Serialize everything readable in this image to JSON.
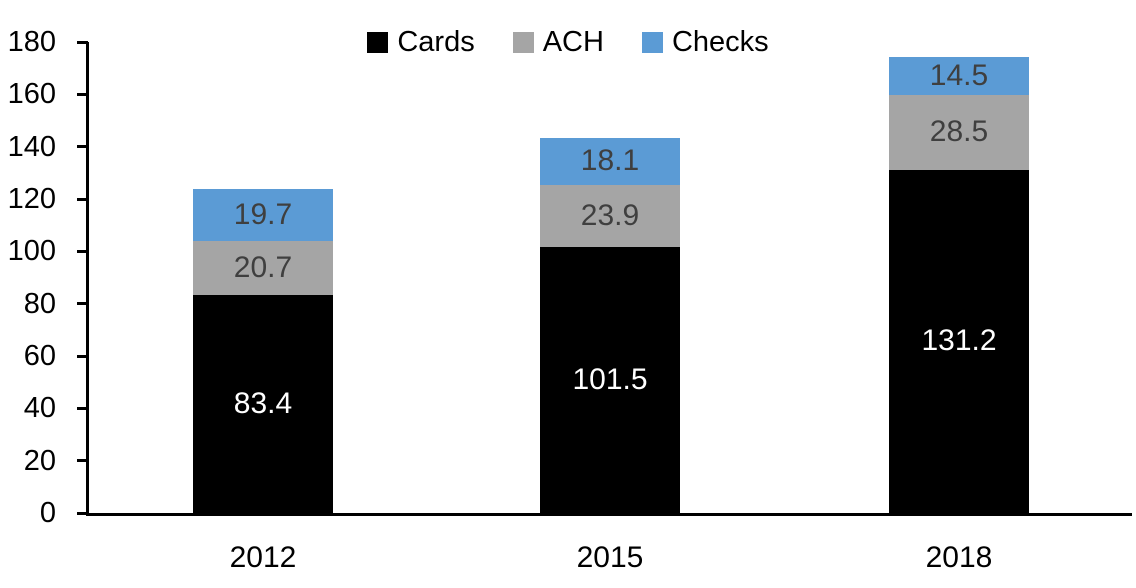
{
  "chart_data": {
    "type": "bar",
    "stacked": true,
    "title": "",
    "xlabel": "",
    "ylabel": "",
    "categories": [
      "2012",
      "2015",
      "2018"
    ],
    "series": [
      {
        "name": "Cards",
        "color": "#000000",
        "label_color": "#ffffff",
        "values": [
          83.4,
          101.5,
          131.2
        ]
      },
      {
        "name": "ACH",
        "color": "#a5a5a5",
        "label_color": "#3f3f3f",
        "values": [
          20.7,
          23.9,
          28.5
        ]
      },
      {
        "name": "Checks",
        "color": "#5b9bd5",
        "label_color": "#3f3f3f",
        "values": [
          19.7,
          18.1,
          14.5
        ]
      }
    ],
    "totals": [
      123.8,
      143.5,
      174.2
    ],
    "ylim": [
      0,
      180
    ],
    "ytick_step": 20,
    "ytick_labels": [
      "0",
      "20",
      "40",
      "60",
      "80",
      "100",
      "120",
      "140",
      "160",
      "180"
    ],
    "grid": false,
    "legend_position": "top-center",
    "legend_entries": [
      "Cards",
      "ACH",
      "Checks"
    ],
    "axis_color": "#000000",
    "background_color": "#ffffff"
  }
}
